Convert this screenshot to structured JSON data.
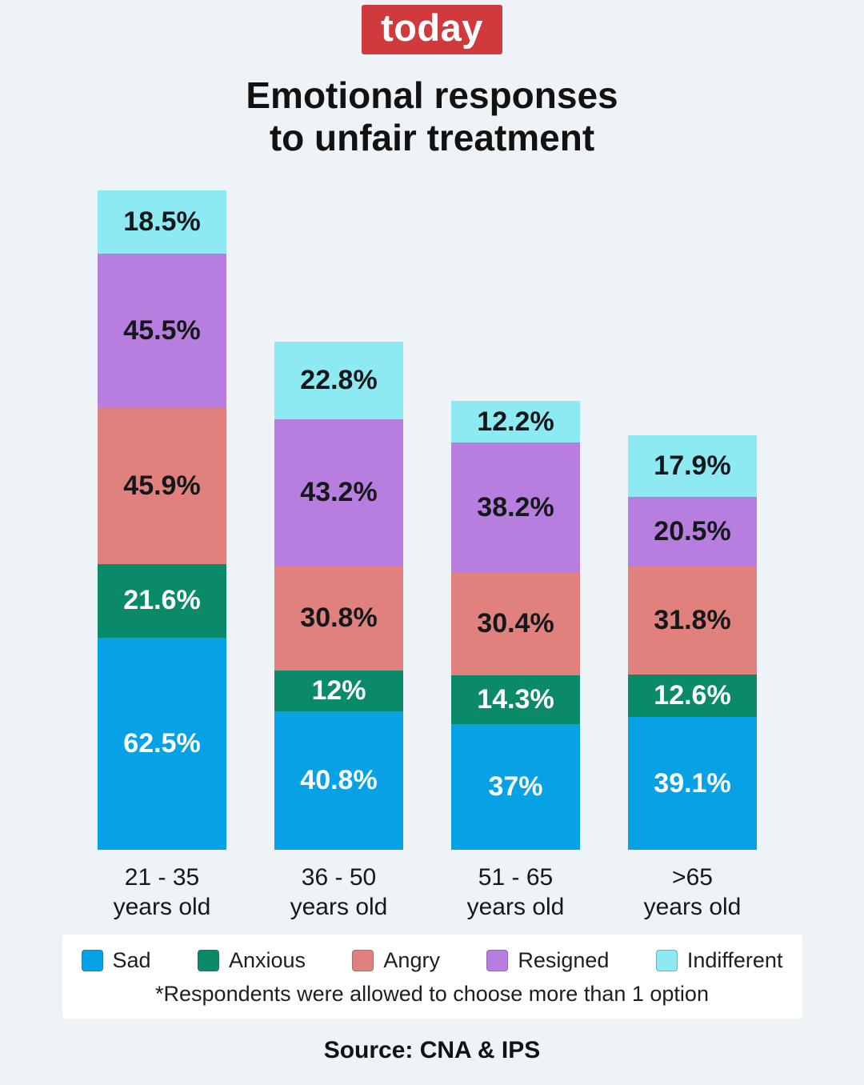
{
  "page": {
    "logo_text": "today",
    "title_line1": "Emotional responses",
    "title_line2": "to unfair treatment",
    "footnote": "*Respondents were allowed to choose more than 1 option",
    "source": "Source: CNA & IPS"
  },
  "colors": {
    "background": "#EDF3F7",
    "logo_red": "#D13A3C",
    "card_white": "#FFFFFF",
    "text_dark": "#121212"
  },
  "chart_data": {
    "type": "bar",
    "stacked": true,
    "title": "Emotional responses to unfair treatment",
    "unit": "%",
    "grid": false,
    "axes_shown": false,
    "legend_position": "bottom",
    "categories": [
      "21 - 35 years old",
      "36 - 50 years old",
      "51 - 65 years old",
      ">65 years old"
    ],
    "category_lines": [
      [
        "21 - 35",
        "years old"
      ],
      [
        "36 - 50",
        "years old"
      ],
      [
        "51 - 65",
        "years old"
      ],
      [
        ">65",
        "years old"
      ]
    ],
    "stack_order_bottom_to_top": [
      "Sad",
      "Anxious",
      "Angry",
      "Resigned",
      "Indifferent"
    ],
    "series": [
      {
        "name": "Sad",
        "color": "#07A2E6",
        "label_color": "#FFFFFF",
        "values": [
          62.5,
          40.8,
          37,
          39.1
        ],
        "labels": [
          "62.5%",
          "40.8%",
          "37%",
          "39.1%"
        ]
      },
      {
        "name": "Anxious",
        "color": "#0B8A69",
        "label_color": "#FFFFFF",
        "values": [
          21.6,
          12,
          14.3,
          12.6
        ],
        "labels": [
          "21.6%",
          "12%",
          "14.3%",
          "12.6%"
        ]
      },
      {
        "name": "Angry",
        "color": "#E0817D",
        "label_color": "#15181B",
        "values": [
          45.9,
          30.8,
          30.4,
          31.8
        ],
        "labels": [
          "45.9%",
          "30.8%",
          "30.4%",
          "31.8%"
        ]
      },
      {
        "name": "Resigned",
        "color": "#B87EDF",
        "label_color": "#15181B",
        "values": [
          45.5,
          43.2,
          38.2,
          20.5
        ],
        "labels": [
          "45.5%",
          "43.2%",
          "38.2%",
          "20.5%"
        ]
      },
      {
        "name": "Indifferent",
        "color": "#8EEAF2",
        "label_color": "#15181B",
        "values": [
          18.5,
          22.8,
          12.2,
          17.9
        ],
        "labels": [
          "18.5%",
          "22.8%",
          "12.2%",
          "17.9%"
        ]
      }
    ],
    "footnote": "*Respondents were allowed to choose more than 1 option",
    "source": "Source: CNA & IPS"
  }
}
